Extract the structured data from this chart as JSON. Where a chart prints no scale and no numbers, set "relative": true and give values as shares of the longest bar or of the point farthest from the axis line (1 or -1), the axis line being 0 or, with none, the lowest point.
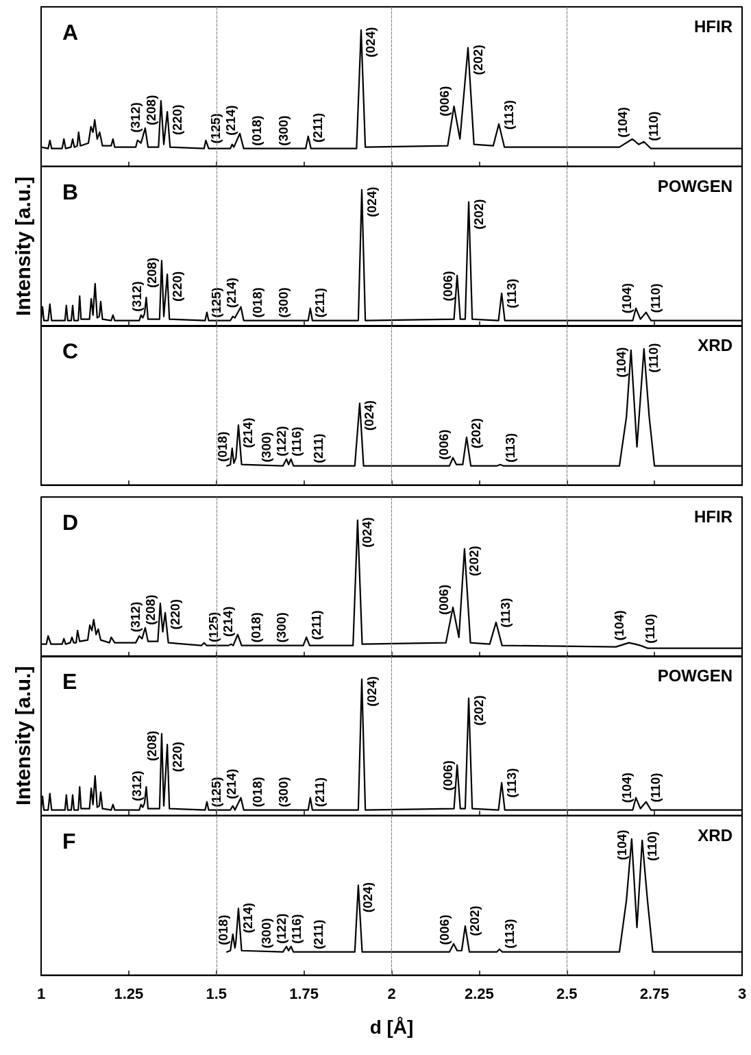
{
  "chart_data": [
    {
      "type": "line",
      "title": "A",
      "relative": true,
      "xlim": [
        1,
        3
      ],
      "xticks": [
        1,
        1.25,
        1.5,
        1.75,
        2,
        2.25,
        2.5,
        2.75,
        3
      ],
      "tick_labels": false,
      "marker": "none",
      "ref_lines": [
        {
          "axis": "x",
          "value": 1.5,
          "color": "#808080",
          "line_style": "dashed"
        },
        {
          "axis": "x",
          "value": 2,
          "color": "#808080",
          "line_style": "dashed"
        },
        {
          "axis": "x",
          "value": 2.5,
          "color": "#808080",
          "line_style": "dashed"
        }
      ],
      "series": [
        {
          "color": "#000000",
          "x": [
            1.0,
            1.02,
            1.025,
            1.03,
            1.06,
            1.065,
            1.07,
            1.085,
            1.09,
            1.095,
            1.103,
            1.107,
            1.112,
            1.135,
            1.142,
            1.148,
            1.153,
            1.16,
            1.167,
            1.175,
            1.2,
            1.205,
            1.21,
            1.27,
            1.275,
            1.285,
            1.297,
            1.305,
            1.335,
            1.342,
            1.35,
            1.36,
            1.368,
            1.465,
            1.47,
            1.478,
            1.54,
            1.545,
            1.55,
            1.567,
            1.578,
            1.755,
            1.762,
            1.77,
            1.9,
            1.913,
            1.925,
            2.16,
            2.178,
            2.195,
            2.218,
            2.235,
            2.29,
            2.306,
            2.322,
            2.65,
            2.687,
            2.705,
            2.72,
            2.74,
            3.0
          ],
          "values": [
            0.14,
            0.13,
            0.19,
            0.13,
            0.13,
            0.2,
            0.13,
            0.14,
            0.2,
            0.14,
            0.15,
            0.25,
            0.15,
            0.17,
            0.29,
            0.25,
            0.34,
            0.2,
            0.25,
            0.15,
            0.15,
            0.2,
            0.14,
            0.14,
            0.19,
            0.17,
            0.28,
            0.14,
            0.14,
            0.48,
            0.16,
            0.4,
            0.14,
            0.13,
            0.19,
            0.13,
            0.13,
            0.16,
            0.14,
            0.24,
            0.13,
            0.13,
            0.22,
            0.13,
            0.13,
            1.0,
            0.14,
            0.15,
            0.44,
            0.2,
            0.87,
            0.16,
            0.15,
            0.31,
            0.14,
            0.14,
            0.2,
            0.16,
            0.18,
            0.13,
            0.13
          ]
        }
      ],
      "annotations": [
        "HFIR",
        {
          "text": "(312)",
          "x": 1.297,
          "y": 0.28
        },
        {
          "text": "(208)",
          "x": 1.342,
          "y": 0.48
        },
        {
          "text": "(220)",
          "x": 1.36,
          "y": 0.4
        },
        {
          "text": "(125)",
          "x": 1.47,
          "y": 0.19
        },
        {
          "text": "(018)",
          "x": 1.545,
          "y": 0.16
        },
        {
          "text": "(214)",
          "x": 1.567,
          "y": 0.24
        },
        {
          "text": "(300)",
          "x": 1.578,
          "y": 0.13
        },
        {
          "text": "(211)",
          "x": 1.762,
          "y": 0.22
        },
        {
          "text": "(024)",
          "x": 1.913,
          "y": 1.0
        },
        {
          "text": "(006)",
          "x": 2.178,
          "y": 0.44
        },
        {
          "text": "(202)",
          "x": 2.218,
          "y": 0.87
        },
        {
          "text": "(113)",
          "x": 2.306,
          "y": 0.31
        },
        {
          "text": "(104)",
          "x": 2.687,
          "y": 0.2
        },
        {
          "text": "(110)",
          "x": 2.72,
          "y": 0.18
        }
      ]
    },
    {
      "type": "line",
      "title": "B",
      "ylabel": "Intensity [a.u.]",
      "relative": true,
      "xlim": [
        1,
        3
      ],
      "xticks": [
        1,
        1.25,
        1.5,
        1.75,
        2,
        2.25,
        2.5,
        2.75,
        3
      ],
      "tick_labels": false,
      "marker": "none",
      "ref_lines": [
        {
          "axis": "x",
          "value": 1.5,
          "color": "#808080",
          "line_style": "dashed"
        },
        {
          "axis": "x",
          "value": 2,
          "color": "#808080",
          "line_style": "dashed"
        },
        {
          "axis": "x",
          "value": 2.5,
          "color": "#808080",
          "line_style": "dashed"
        }
      ],
      "series": [
        {
          "color": "#000000",
          "x": [
            1.0,
            1.004,
            1.008,
            1.02,
            1.025,
            1.03,
            1.068,
            1.072,
            1.076,
            1.086,
            1.09,
            1.094,
            1.106,
            1.11,
            1.114,
            1.138,
            1.143,
            1.148,
            1.154,
            1.16,
            1.166,
            1.17,
            1.175,
            1.2,
            1.205,
            1.21,
            1.28,
            1.285,
            1.29,
            1.295,
            1.3,
            1.305,
            1.338,
            1.344,
            1.35,
            1.36,
            1.366,
            1.468,
            1.473,
            1.478,
            1.54,
            1.547,
            1.553,
            1.57,
            1.578,
            1.762,
            1.768,
            1.774,
            1.905,
            1.915,
            1.925,
            2.178,
            2.187,
            2.196,
            2.21,
            2.22,
            2.23,
            2.305,
            2.314,
            2.323,
            2.688,
            2.697,
            2.71,
            2.726,
            2.74,
            3.0
          ],
          "values": [
            0.05,
            0.14,
            0.04,
            0.04,
            0.16,
            0.04,
            0.04,
            0.15,
            0.04,
            0.04,
            0.15,
            0.04,
            0.04,
            0.22,
            0.05,
            0.05,
            0.2,
            0.08,
            0.31,
            0.06,
            0.07,
            0.18,
            0.05,
            0.04,
            0.08,
            0.04,
            0.04,
            0.08,
            0.06,
            0.09,
            0.21,
            0.05,
            0.05,
            0.48,
            0.07,
            0.38,
            0.05,
            0.04,
            0.1,
            0.04,
            0.04,
            0.07,
            0.06,
            0.14,
            0.04,
            0.04,
            0.13,
            0.04,
            0.04,
            1.0,
            0.04,
            0.05,
            0.37,
            0.05,
            0.05,
            0.91,
            0.05,
            0.04,
            0.24,
            0.04,
            0.04,
            0.13,
            0.05,
            0.1,
            0.04,
            0.04
          ]
        }
      ],
      "annotations": [
        "POWGEN",
        {
          "text": "(312)",
          "x": 1.3,
          "y": 0.21
        },
        {
          "text": "(208)",
          "x": 1.344,
          "y": 0.48
        },
        {
          "text": "(220)",
          "x": 1.36,
          "y": 0.38
        },
        {
          "text": "(125)",
          "x": 1.473,
          "y": 0.1
        },
        {
          "text": "(018)",
          "x": 1.547,
          "y": 0.07
        },
        {
          "text": "(214)",
          "x": 1.57,
          "y": 0.14
        },
        {
          "text": "(300)",
          "x": 1.578,
          "y": 0.04
        },
        {
          "text": "(211)",
          "x": 1.768,
          "y": 0.13
        },
        {
          "text": "(024)",
          "x": 1.915,
          "y": 1.0
        },
        {
          "text": "(006)",
          "x": 2.187,
          "y": 0.37
        },
        {
          "text": "(202)",
          "x": 2.22,
          "y": 0.91
        },
        {
          "text": "(113)",
          "x": 2.314,
          "y": 0.24
        },
        {
          "text": "(104)",
          "x": 2.697,
          "y": 0.13
        },
        {
          "text": "(110)",
          "x": 2.726,
          "y": 0.1
        }
      ]
    },
    {
      "type": "line",
      "title": "C",
      "relative": true,
      "xlim": [
        1,
        3
      ],
      "xticks": [
        1,
        1.25,
        1.5,
        1.75,
        2,
        2.25,
        2.5,
        2.75,
        3
      ],
      "tick_labels": false,
      "marker": "none",
      "ref_lines": [
        {
          "axis": "x",
          "value": 1.5,
          "color": "#808080",
          "line_style": "dashed"
        },
        {
          "axis": "x",
          "value": 2,
          "color": "#808080",
          "line_style": "dashed"
        },
        {
          "axis": "x",
          "value": 2.5,
          "color": "#808080",
          "line_style": "dashed"
        }
      ],
      "series": [
        {
          "color": "#000000",
          "x": [
            1.53,
            1.54,
            1.545,
            1.55,
            1.556,
            1.563,
            1.572,
            1.69,
            1.7,
            1.706,
            1.713,
            1.72,
            1.895,
            1.909,
            1.92,
            2.165,
            2.175,
            2.185,
            2.203,
            2.214,
            2.226,
            2.3,
            2.31,
            2.32,
            2.65,
            2.67,
            2.683,
            2.7,
            2.72,
            2.735,
            2.75,
            3.0
          ],
          "values": [
            0.14,
            0.15,
            0.27,
            0.16,
            0.2,
            0.44,
            0.15,
            0.14,
            0.19,
            0.15,
            0.19,
            0.14,
            0.14,
            0.6,
            0.14,
            0.14,
            0.2,
            0.15,
            0.15,
            0.35,
            0.14,
            0.14,
            0.15,
            0.14,
            0.14,
            0.5,
            0.99,
            0.28,
            1.0,
            0.5,
            0.14,
            0.14
          ]
        }
      ],
      "annotations": [
        "XRD",
        {
          "text": "(018)",
          "x": 1.545,
          "y": 0.27
        },
        {
          "text": "(214)",
          "x": 1.563,
          "y": 0.44
        },
        {
          "text": "(300)",
          "x": 1.572,
          "y": 0.15
        },
        {
          "text": "(116)",
          "x": 1.7,
          "y": 0.19
        },
        {
          "text": "(122)",
          "x": 1.713,
          "y": 0.19
        },
        {
          "text": "(211)",
          "x": 1.72,
          "y": 0.14
        },
        {
          "text": "(024)",
          "x": 1.909,
          "y": 0.6
        },
        {
          "text": "(006)",
          "x": 2.175,
          "y": 0.2
        },
        {
          "text": "(202)",
          "x": 2.214,
          "y": 0.35
        },
        {
          "text": "(113)",
          "x": 2.31,
          "y": 0.15
        },
        {
          "text": "(104)",
          "x": 2.683,
          "y": 0.99
        },
        {
          "text": "(110)",
          "x": 2.72,
          "y": 1.0
        }
      ]
    },
    {
      "type": "line",
      "title": "D",
      "relative": true,
      "xlim": [
        1,
        3
      ],
      "xticks": [
        1,
        1.25,
        1.5,
        1.75,
        2,
        2.25,
        2.5,
        2.75,
        3
      ],
      "tick_labels": false,
      "marker": "none",
      "ref_lines": [
        {
          "axis": "x",
          "value": 1.5,
          "color": "#808080",
          "line_style": "dashed"
        },
        {
          "axis": "x",
          "value": 2,
          "color": "#808080",
          "line_style": "dashed"
        },
        {
          "axis": "x",
          "value": 2.5,
          "color": "#808080",
          "line_style": "dashed"
        }
      ],
      "series": [
        {
          "color": "#000000",
          "x": [
            1.0,
            1.015,
            1.02,
            1.028,
            1.06,
            1.065,
            1.07,
            1.083,
            1.088,
            1.093,
            1.1,
            1.104,
            1.11,
            1.133,
            1.139,
            1.145,
            1.15,
            1.157,
            1.163,
            1.17,
            1.195,
            1.2,
            1.21,
            1.27,
            1.28,
            1.288,
            1.297,
            1.305,
            1.333,
            1.34,
            1.347,
            1.354,
            1.363,
            1.458,
            1.465,
            1.472,
            1.535,
            1.542,
            1.548,
            1.561,
            1.572,
            1.748,
            1.757,
            1.766,
            1.89,
            1.903,
            1.916,
            2.155,
            2.175,
            2.192,
            2.208,
            2.225,
            2.28,
            2.298,
            2.315,
            2.64,
            2.677,
            2.695,
            2.71,
            2.73,
            3.0
          ],
          "values": [
            0.09,
            0.09,
            0.15,
            0.09,
            0.09,
            0.13,
            0.09,
            0.1,
            0.14,
            0.1,
            0.1,
            0.19,
            0.11,
            0.12,
            0.23,
            0.19,
            0.27,
            0.16,
            0.2,
            0.12,
            0.1,
            0.14,
            0.1,
            0.1,
            0.15,
            0.13,
            0.21,
            0.11,
            0.11,
            0.39,
            0.18,
            0.32,
            0.1,
            0.08,
            0.1,
            0.08,
            0.08,
            0.09,
            0.08,
            0.16,
            0.08,
            0.08,
            0.14,
            0.08,
            0.08,
            1.0,
            0.09,
            0.1,
            0.36,
            0.14,
            0.79,
            0.1,
            0.09,
            0.25,
            0.08,
            0.07,
            0.1,
            0.09,
            0.08,
            0.06,
            0.06
          ]
        }
      ],
      "annotations": [
        "HFIR",
        {
          "text": "(312)",
          "x": 1.297,
          "y": 0.21
        },
        {
          "text": "(208)",
          "x": 1.34,
          "y": 0.39
        },
        {
          "text": "(220)",
          "x": 1.354,
          "y": 0.32
        },
        {
          "text": "(125)",
          "x": 1.465,
          "y": 0.1
        },
        {
          "text": "(018)",
          "x": 1.542,
          "y": 0.09
        },
        {
          "text": "(214)",
          "x": 1.561,
          "y": 0.16
        },
        {
          "text": "(300)",
          "x": 1.572,
          "y": 0.08
        },
        {
          "text": "(211)",
          "x": 1.757,
          "y": 0.14
        },
        {
          "text": "(024)",
          "x": 1.903,
          "y": 1.0
        },
        {
          "text": "(006)",
          "x": 2.175,
          "y": 0.36
        },
        {
          "text": "(202)",
          "x": 2.208,
          "y": 0.79
        },
        {
          "text": "(113)",
          "x": 2.298,
          "y": 0.25
        },
        {
          "text": "(104)",
          "x": 2.677,
          "y": 0.1
        },
        {
          "text": "(110)",
          "x": 2.71,
          "y": 0.08
        }
      ]
    },
    {
      "type": "line",
      "title": "E",
      "ylabel": "Intensity [a.u.]",
      "relative": true,
      "xlim": [
        1,
        3
      ],
      "xticks": [
        1,
        1.25,
        1.5,
        1.75,
        2,
        2.25,
        2.5,
        2.75,
        3
      ],
      "tick_labels": false,
      "marker": "none",
      "ref_lines": [
        {
          "axis": "x",
          "value": 1.5,
          "color": "#808080",
          "line_style": "dashed"
        },
        {
          "axis": "x",
          "value": 2,
          "color": "#808080",
          "line_style": "dashed"
        },
        {
          "axis": "x",
          "value": 2.5,
          "color": "#808080",
          "line_style": "dashed"
        }
      ],
      "series": [
        {
          "color": "#000000",
          "x": [
            1.0,
            1.004,
            1.008,
            1.02,
            1.025,
            1.03,
            1.068,
            1.072,
            1.076,
            1.086,
            1.09,
            1.094,
            1.106,
            1.11,
            1.114,
            1.138,
            1.143,
            1.148,
            1.154,
            1.16,
            1.166,
            1.17,
            1.175,
            1.2,
            1.205,
            1.21,
            1.28,
            1.285,
            1.29,
            1.295,
            1.3,
            1.305,
            1.338,
            1.344,
            1.35,
            1.36,
            1.366,
            1.468,
            1.473,
            1.478,
            1.54,
            1.547,
            1.553,
            1.57,
            1.578,
            1.762,
            1.768,
            1.774,
            1.905,
            1.915,
            1.925,
            2.178,
            2.187,
            2.196,
            2.21,
            2.22,
            2.23,
            2.305,
            2.314,
            2.323,
            2.688,
            2.697,
            2.71,
            2.726,
            2.74,
            3.0
          ],
          "values": [
            0.05,
            0.14,
            0.04,
            0.04,
            0.16,
            0.04,
            0.04,
            0.15,
            0.04,
            0.04,
            0.15,
            0.04,
            0.04,
            0.21,
            0.05,
            0.05,
            0.2,
            0.08,
            0.29,
            0.06,
            0.07,
            0.17,
            0.05,
            0.04,
            0.08,
            0.04,
            0.04,
            0.08,
            0.06,
            0.09,
            0.21,
            0.05,
            0.05,
            0.6,
            0.07,
            0.52,
            0.05,
            0.04,
            0.1,
            0.04,
            0.04,
            0.07,
            0.04,
            0.13,
            0.04,
            0.04,
            0.13,
            0.04,
            0.04,
            1.0,
            0.04,
            0.05,
            0.37,
            0.05,
            0.05,
            0.86,
            0.05,
            0.04,
            0.24,
            0.04,
            0.04,
            0.13,
            0.05,
            0.1,
            0.04,
            0.04
          ]
        }
      ],
      "annotations": [
        "POWGEN",
        {
          "text": "(312)",
          "x": 1.3,
          "y": 0.21
        },
        {
          "text": "(208)",
          "x": 1.344,
          "y": 0.6
        },
        {
          "text": "(220)",
          "x": 1.36,
          "y": 0.52
        },
        {
          "text": "(125)",
          "x": 1.473,
          "y": 0.1
        },
        {
          "text": "(018)",
          "x": 1.547,
          "y": 0.07
        },
        {
          "text": "(214)",
          "x": 1.57,
          "y": 0.13
        },
        {
          "text": "(300)",
          "x": 1.578,
          "y": 0.04
        },
        {
          "text": "(211)",
          "x": 1.768,
          "y": 0.13
        },
        {
          "text": "(024)",
          "x": 1.915,
          "y": 1.0
        },
        {
          "text": "(006)",
          "x": 2.187,
          "y": 0.37
        },
        {
          "text": "(202)",
          "x": 2.22,
          "y": 0.86
        },
        {
          "text": "(113)",
          "x": 2.314,
          "y": 0.24
        },
        {
          "text": "(104)",
          "x": 2.697,
          "y": 0.13
        },
        {
          "text": "(110)",
          "x": 2.726,
          "y": 0.1
        }
      ]
    },
    {
      "type": "line",
      "title": "F",
      "xlabel": "d [Å]",
      "relative": true,
      "xlim": [
        1,
        3
      ],
      "xticks": [
        1,
        1.25,
        1.5,
        1.75,
        2,
        2.25,
        2.5,
        2.75,
        3
      ],
      "tick_labels": "x",
      "marker": "none",
      "ref_lines": [
        {
          "axis": "x",
          "value": 1.5,
          "color": "#808080",
          "line_style": "dashed"
        },
        {
          "axis": "x",
          "value": 2,
          "color": "#808080",
          "line_style": "dashed"
        },
        {
          "axis": "x",
          "value": 2.5,
          "color": "#808080",
          "line_style": "dashed"
        }
      ],
      "series": [
        {
          "color": "#000000",
          "x": [
            1.53,
            1.54,
            1.547,
            1.553,
            1.556,
            1.563,
            1.572,
            1.69,
            1.7,
            1.706,
            1.713,
            1.72,
            1.895,
            1.905,
            1.916,
            2.165,
            2.177,
            2.187,
            2.2,
            2.21,
            2.222,
            2.3,
            2.308,
            2.316,
            2.65,
            2.67,
            2.685,
            2.7,
            2.715,
            2.73,
            2.745,
            3.0
          ],
          "values": [
            0.17,
            0.18,
            0.3,
            0.2,
            0.25,
            0.49,
            0.18,
            0.17,
            0.21,
            0.18,
            0.21,
            0.17,
            0.17,
            0.66,
            0.17,
            0.17,
            0.23,
            0.18,
            0.18,
            0.36,
            0.17,
            0.17,
            0.19,
            0.17,
            0.17,
            0.55,
            1.0,
            0.35,
            0.99,
            0.55,
            0.17,
            0.17
          ]
        }
      ],
      "annotations": [
        "XRD",
        {
          "text": "(018)",
          "x": 1.547,
          "y": 0.3
        },
        {
          "text": "(214)",
          "x": 1.563,
          "y": 0.49
        },
        {
          "text": "(300)",
          "x": 1.572,
          "y": 0.18
        },
        {
          "text": "(116)",
          "x": 1.7,
          "y": 0.21
        },
        {
          "text": "(122)",
          "x": 1.713,
          "y": 0.21
        },
        {
          "text": "(211)",
          "x": 1.72,
          "y": 0.17
        },
        {
          "text": "(024)",
          "x": 1.905,
          "y": 0.66
        },
        {
          "text": "(006)",
          "x": 2.177,
          "y": 0.23
        },
        {
          "text": "(202)",
          "x": 2.21,
          "y": 0.36
        },
        {
          "text": "(113)",
          "x": 2.308,
          "y": 0.19
        },
        {
          "text": "(104)",
          "x": 2.685,
          "y": 1.0
        },
        {
          "text": "(110)",
          "x": 2.715,
          "y": 0.99
        }
      ]
    }
  ]
}
